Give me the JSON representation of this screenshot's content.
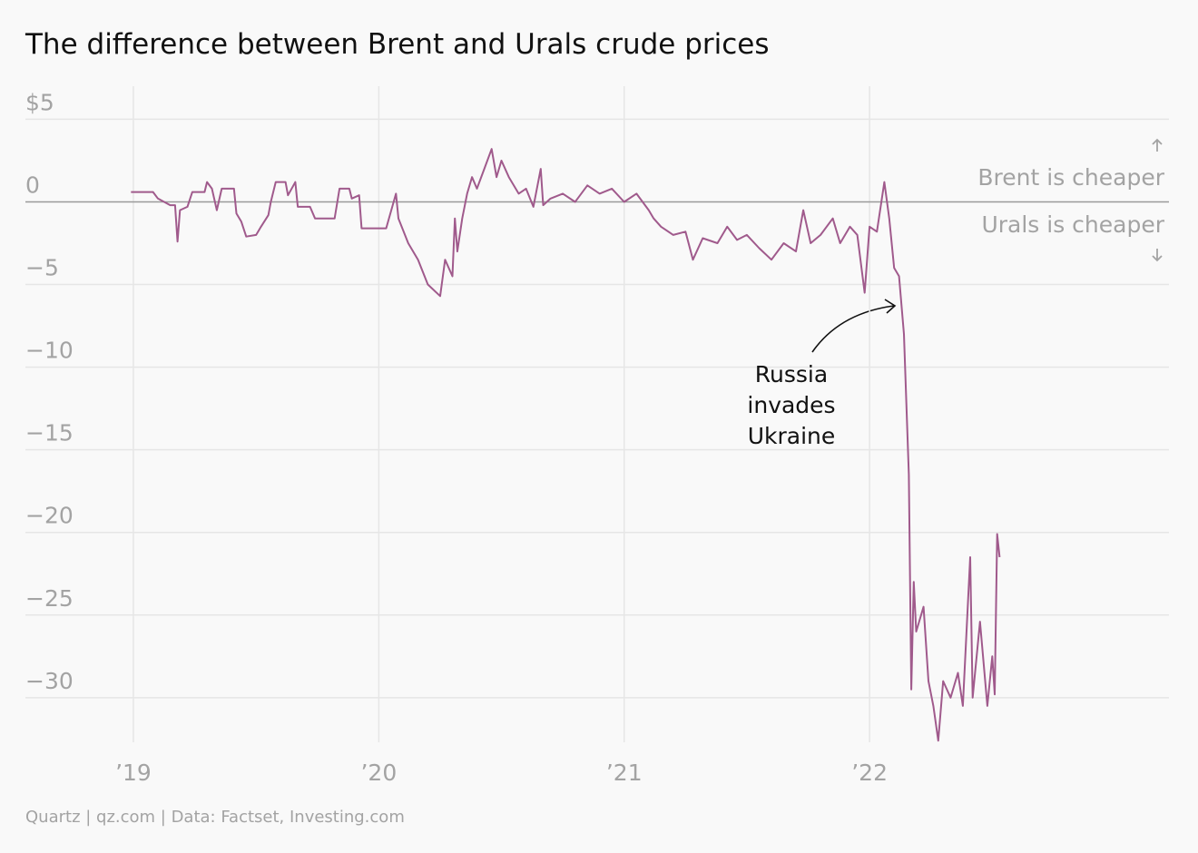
{
  "chart_data": {
    "type": "line",
    "title": "The difference between Brent and Urals crude prices",
    "source": "Quartz | qz.com | Data: Factset, Investing.com",
    "annotations": {
      "above": "Brent is cheaper",
      "below": "Urals is cheaper",
      "event": [
        "Russia",
        "invades",
        "Ukraine"
      ]
    },
    "color": "#a05a8c",
    "grid": true,
    "xlim": [
      2018.56,
      2023.22
    ],
    "xticks": [
      {
        "value": 2019,
        "label": "’19"
      },
      {
        "value": 2020,
        "label": "’20"
      },
      {
        "value": 2021,
        "label": "’21"
      },
      {
        "value": 2022,
        "label": "’22"
      }
    ],
    "ylim": [
      -32.7,
      7
    ],
    "yticks": [
      {
        "value": 5,
        "label": "$5"
      },
      0,
      {
        "value": -5,
        "label": "−5"
      },
      {
        "value": -10,
        "label": "−10"
      },
      {
        "value": -15,
        "label": "−15"
      },
      {
        "value": -20,
        "label": "−20"
      },
      {
        "value": -25,
        "label": "−25"
      },
      {
        "value": -30,
        "label": "−30"
      }
    ],
    "x": [
      2018.99,
      2019.08,
      2019.1,
      2019.15,
      2019.17,
      2019.18,
      2019.19,
      2019.22,
      2019.24,
      2019.29,
      2019.3,
      2019.32,
      2019.34,
      2019.36,
      2019.41,
      2019.42,
      2019.44,
      2019.46,
      2019.5,
      2019.52,
      2019.55,
      2019.56,
      2019.58,
      2019.62,
      2019.63,
      2019.66,
      2019.67,
      2019.72,
      2019.74,
      2019.82,
      2019.84,
      2019.88,
      2019.89,
      2019.92,
      2019.93,
      2020.03,
      2020.07,
      2020.08,
      2020.12,
      2020.16,
      2020.2,
      2020.25,
      2020.27,
      2020.3,
      2020.31,
      2020.32,
      2020.34,
      2020.36,
      2020.38,
      2020.4,
      2020.43,
      2020.46,
      2020.48,
      2020.5,
      2020.53,
      2020.57,
      2020.6,
      2020.63,
      2020.66,
      2020.67,
      2020.7,
      2020.75,
      2020.8,
      2020.85,
      2020.9,
      2020.95,
      2021.0,
      2021.05,
      2021.1,
      2021.12,
      2021.15,
      2021.2,
      2021.25,
      2021.28,
      2021.32,
      2021.38,
      2021.42,
      2021.46,
      2021.5,
      2021.55,
      2021.6,
      2021.65,
      2021.7,
      2021.73,
      2021.76,
      2021.8,
      2021.85,
      2021.88,
      2021.92,
      2021.95,
      2021.98,
      2022.0,
      2022.03,
      2022.06,
      2022.08,
      2022.1,
      2022.12,
      2022.14,
      2022.16,
      2022.17,
      2022.18,
      2022.19,
      2022.22,
      2022.24,
      2022.26,
      2022.28,
      2022.3,
      2022.33,
      2022.36,
      2022.38,
      2022.41,
      2022.42,
      2022.45,
      2022.48,
      2022.5,
      2022.51,
      2022.52,
      2022.53
    ],
    "values": [
      0.6,
      0.6,
      0.2,
      -0.2,
      -0.2,
      -2.4,
      -0.5,
      -0.3,
      0.6,
      0.6,
      1.2,
      0.8,
      -0.5,
      0.8,
      0.8,
      -0.7,
      -1.2,
      -2.1,
      -2.0,
      -1.5,
      -0.8,
      0,
      1.2,
      1.2,
      0.4,
      1.2,
      -0.3,
      -0.3,
      -1.0,
      -1.0,
      0.8,
      0.8,
      0.2,
      0.4,
      -1.6,
      -1.6,
      0.5,
      -1.0,
      -2.5,
      -3.5,
      -5.0,
      -5.7,
      -3.5,
      -4.5,
      -1.0,
      -3.0,
      -1.0,
      0.5,
      1.5,
      0.8,
      2.0,
      3.2,
      1.5,
      2.5,
      1.5,
      0.5,
      0.8,
      -0.3,
      2.0,
      -0.2,
      0.2,
      0.5,
      0.0,
      1.0,
      0.5,
      0.8,
      0.0,
      0.5,
      -0.5,
      -1.0,
      -1.5,
      -2.0,
      -1.8,
      -3.5,
      -2.2,
      -2.5,
      -1.5,
      -2.3,
      -2.0,
      -2.8,
      -3.5,
      -2.5,
      -3.0,
      -0.5,
      -2.5,
      -2.0,
      -1.0,
      -2.5,
      -1.5,
      -2.0,
      -5.5,
      -1.5,
      -1.8,
      1.2,
      -1.0,
      -4.0,
      -4.5,
      -8.0,
      -16.5,
      -29.5,
      -23,
      -26.0,
      -24.5,
      -29,
      -30.5,
      -32.6,
      -29,
      -30,
      -28.5,
      -30.5,
      -21.5,
      -30,
      -25.4,
      -30.5,
      -27.5,
      -29.8,
      -20.1,
      -21.5
    ]
  }
}
